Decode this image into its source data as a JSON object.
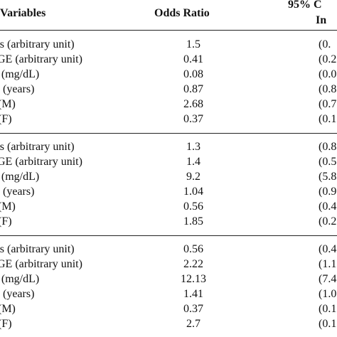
{
  "header": {
    "variables": "Variables",
    "odds_ratio": "Odds Ratio",
    "ci_line1": "95% C",
    "ci_line2": "In"
  },
  "sections": [
    {
      "rows": [
        {
          "variable": "Es (arbitrary unit)",
          "odds": "1.5",
          "ci": "(0."
        },
        {
          "variable": "GE (arbitrary unit)",
          "odds": "0.41",
          "ci": "(0.2"
        },
        {
          "variable": "' (mg/dL)",
          "odds": "0.08",
          "ci": "(0.0"
        },
        {
          "variable": "(years)",
          "odds": "0.87",
          "ci": "(0.8"
        },
        {
          "variable": "(M)",
          "odds": "2.68",
          "ci": "(0.7"
        },
        {
          "variable": "(F)",
          "odds": "0.37",
          "ci": "(0.1"
        }
      ]
    },
    {
      "rows": [
        {
          "variable": "Es (arbitrary unit)",
          "odds": "1.3",
          "ci": "(0.8"
        },
        {
          "variable": "GE (arbitrary unit)",
          "odds": "1.4",
          "ci": "(0.5"
        },
        {
          "variable": "' (mg/dL)",
          "odds": "9.2",
          "ci": "(5.8"
        },
        {
          "variable": "(years)",
          "odds": "1.04",
          "ci": "(0.9"
        },
        {
          "variable": "(M)",
          "odds": "0.56",
          "ci": "(0.4"
        },
        {
          "variable": "(F)",
          "odds": "1.85",
          "ci": "(0.2"
        }
      ]
    },
    {
      "rows": [
        {
          "variable": "Es (arbitrary unit)",
          "odds": "0.56",
          "ci": "(0.4"
        },
        {
          "variable": "GE (arbitrary unit)",
          "odds": "2.22",
          "ci": "(1.1"
        },
        {
          "variable": "' (mg/dL)",
          "odds": "12.13",
          "ci": "(7.4"
        },
        {
          "variable": "(years)",
          "odds": "1.41",
          "ci": "(1.0"
        },
        {
          "variable": "(M)",
          "odds": "0.37",
          "ci": "(0.1"
        },
        {
          "variable": "(F)",
          "odds": "2.7",
          "ci": "(0.1"
        }
      ]
    }
  ]
}
